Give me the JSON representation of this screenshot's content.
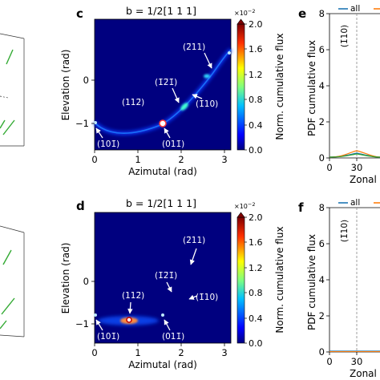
{
  "figure": {
    "panels": {
      "c": {
        "letter": "c",
        "title": "b = 1/2[1 1 1]"
      },
      "d": {
        "letter": "d",
        "title": "b = 1/2[1 1 1]"
      },
      "e": {
        "letter": "e"
      },
      "f": {
        "letter": "f"
      }
    },
    "colorbar": {
      "label": "Norm. cumulative flux",
      "exponent": "×10",
      "exponent_power": "−2",
      "ticks": [
        "0.0",
        "0.4",
        "0.8",
        "1.2",
        "1.6",
        "2.0"
      ]
    },
    "colors": {
      "all": "#1f77b4",
      "second_series": "#ff7f0e",
      "heat_low": "#00007f",
      "heat_mid": "#00c0ff",
      "heat_high": "#ffffff",
      "path_accent": "#33aa33"
    }
  },
  "chart_data": [
    {
      "type": "heatmap",
      "panel": "c",
      "title": "b = 1/2[1 1 1]",
      "xlabel": "Azimutal (rad)",
      "ylabel": "Elevation (rad)",
      "xlim": [
        0,
        3.14
      ],
      "ylim": [
        -1.57,
        0.95
      ],
      "xticks": [
        "0",
        "1",
        "2",
        "3"
      ],
      "yticks": [
        "0",
        "−1"
      ],
      "colorbar_range": [
        0,
        2.0
      ],
      "annotations": [
        {
          "label": "(2̄11)",
          "x": 2.7,
          "y": 0.33
        },
        {
          "label": "(1̄2̄1̄)",
          "x": 2.0,
          "y": -0.34
        },
        {
          "label": "(1̄10)",
          "x": 2.36,
          "y": -0.76
        },
        {
          "label": "(112̄)",
          "x": 0.75,
          "y": -0.6
        },
        {
          "label": "(101̄)",
          "x": 0.0,
          "y": -0.78
        },
        {
          "label": "(011̄)",
          "x": 1.57,
          "y": -0.79
        }
      ]
    },
    {
      "type": "heatmap",
      "panel": "d",
      "title": "b = 1/2[1 1 1]",
      "xlabel": "Azimutal (rad)",
      "ylabel": "Elevation (rad)",
      "xlim": [
        0,
        3.14
      ],
      "ylim": [
        -1.57,
        0.95
      ],
      "xticks": [
        "0",
        "1",
        "2",
        "3"
      ],
      "yticks": [
        "0",
        "−1"
      ],
      "colorbar_range": [
        0,
        2.0
      ],
      "annotations": [
        {
          "label": "(2̄11)",
          "x": 2.7,
          "y": 0.33
        },
        {
          "label": "(1̄2̄1̄)",
          "x": 2.0,
          "y": -0.34
        },
        {
          "label": "(1̄10)",
          "x": 2.36,
          "y": -0.76
        },
        {
          "label": "(112̄)",
          "x": 0.75,
          "y": -0.6
        },
        {
          "label": "(101̄)",
          "x": 0.0,
          "y": -0.78
        },
        {
          "label": "(011̄)",
          "x": 1.57,
          "y": -0.79
        }
      ]
    },
    {
      "type": "line",
      "panel": "e",
      "ylabel": "PDF cumulative flux",
      "xlabel": "Zonal",
      "yticks": [
        "0",
        "2",
        "4",
        "6",
        "8"
      ],
      "ylim": [
        0,
        8
      ],
      "xticks": [
        "0",
        "30"
      ],
      "vline_x": 30,
      "vline_label": "(1̄10)",
      "legend": [
        "all"
      ],
      "legend_placement": "top"
    },
    {
      "type": "line",
      "panel": "f",
      "ylabel": "PDF cumulative flux",
      "xlabel": "Zonal",
      "yticks": [
        "0",
        "2",
        "4",
        "6",
        "8"
      ],
      "ylim": [
        0,
        8
      ],
      "xticks": [
        "0",
        "30"
      ],
      "vline_x": 30,
      "vline_label": "(1̄10)",
      "legend": [
        "all"
      ],
      "legend_placement": "top"
    }
  ]
}
